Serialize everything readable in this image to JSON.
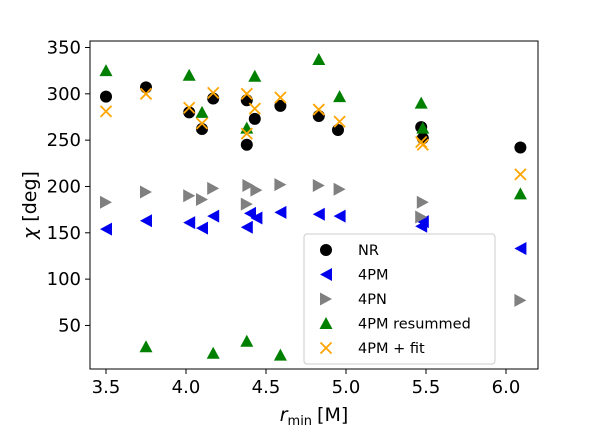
{
  "chart_data": {
    "type": "scatter",
    "xlabel_main": "r",
    "xlabel_sub": "min",
    "xlabel_unit": "[M]",
    "ylabel_symbol": "χ",
    "ylabel_unit": "[deg]",
    "xlim": [
      3.4,
      6.2
    ],
    "ylim": [
      3,
      357
    ],
    "xticks": [
      3.5,
      4.0,
      4.5,
      5.0,
      5.5,
      6.0
    ],
    "xtick_labels": [
      "3.5",
      "4.0",
      "4.5",
      "5.0",
      "5.5",
      "6.0"
    ],
    "yticks": [
      50,
      100,
      150,
      200,
      250,
      300,
      350
    ],
    "ytick_labels": [
      "50",
      "100",
      "150",
      "200",
      "250",
      "300",
      "350"
    ],
    "grid": false,
    "legend_position": "lower-right",
    "series": [
      {
        "name": "NR",
        "marker": "circle",
        "color": "#000000",
        "points": [
          [
            3.5,
            297
          ],
          [
            3.75,
            307
          ],
          [
            4.02,
            280
          ],
          [
            4.1,
            262
          ],
          [
            4.17,
            295
          ],
          [
            4.38,
            245
          ],
          [
            4.38,
            293
          ],
          [
            4.43,
            273
          ],
          [
            4.59,
            287
          ],
          [
            4.83,
            276
          ],
          [
            4.95,
            261
          ],
          [
            5.47,
            264
          ],
          [
            5.48,
            252
          ],
          [
            6.09,
            242
          ]
        ]
      },
      {
        "name": "4PM",
        "marker": "triangle-left",
        "color": "#0000ee",
        "points": [
          [
            3.5,
            154
          ],
          [
            3.75,
            163
          ],
          [
            4.02,
            161
          ],
          [
            4.1,
            155
          ],
          [
            4.17,
            168
          ],
          [
            4.38,
            156
          ],
          [
            4.4,
            171
          ],
          [
            4.44,
            166
          ],
          [
            4.59,
            172
          ],
          [
            4.83,
            170
          ],
          [
            4.96,
            168
          ],
          [
            5.47,
            157
          ],
          [
            5.48,
            162
          ],
          [
            6.09,
            133
          ]
        ]
      },
      {
        "name": "4PN",
        "marker": "triangle-right",
        "color": "#808080",
        "points": [
          [
            3.5,
            183
          ],
          [
            3.75,
            194
          ],
          [
            4.02,
            190
          ],
          [
            4.1,
            186
          ],
          [
            4.17,
            198
          ],
          [
            4.38,
            181
          ],
          [
            4.39,
            201
          ],
          [
            4.44,
            196
          ],
          [
            4.59,
            202
          ],
          [
            4.83,
            201
          ],
          [
            4.96,
            197
          ],
          [
            5.47,
            167
          ],
          [
            5.48,
            183
          ],
          [
            6.09,
            77
          ]
        ]
      },
      {
        "name": "4PM resummed",
        "marker": "triangle-up",
        "color": "#008000",
        "points": [
          [
            3.5,
            325
          ],
          [
            3.75,
            27
          ],
          [
            4.02,
            320
          ],
          [
            4.1,
            280
          ],
          [
            4.17,
            20
          ],
          [
            4.38,
            263
          ],
          [
            4.38,
            33
          ],
          [
            4.43,
            319
          ],
          [
            4.59,
            18
          ],
          [
            4.83,
            337
          ],
          [
            4.96,
            297
          ],
          [
            5.47,
            290
          ],
          [
            5.48,
            263
          ],
          [
            6.09,
            192
          ]
        ]
      },
      {
        "name": "4PM + fit",
        "marker": "x",
        "color": "#ffa500",
        "points": [
          [
            3.5,
            281
          ],
          [
            3.75,
            300
          ],
          [
            4.02,
            285
          ],
          [
            4.1,
            268
          ],
          [
            4.17,
            301
          ],
          [
            4.38,
            257
          ],
          [
            4.38,
            300
          ],
          [
            4.43,
            284
          ],
          [
            4.59,
            296
          ],
          [
            4.83,
            283
          ],
          [
            4.96,
            270
          ],
          [
            5.47,
            248
          ],
          [
            5.48,
            245
          ],
          [
            6.09,
            213
          ]
        ]
      }
    ]
  }
}
